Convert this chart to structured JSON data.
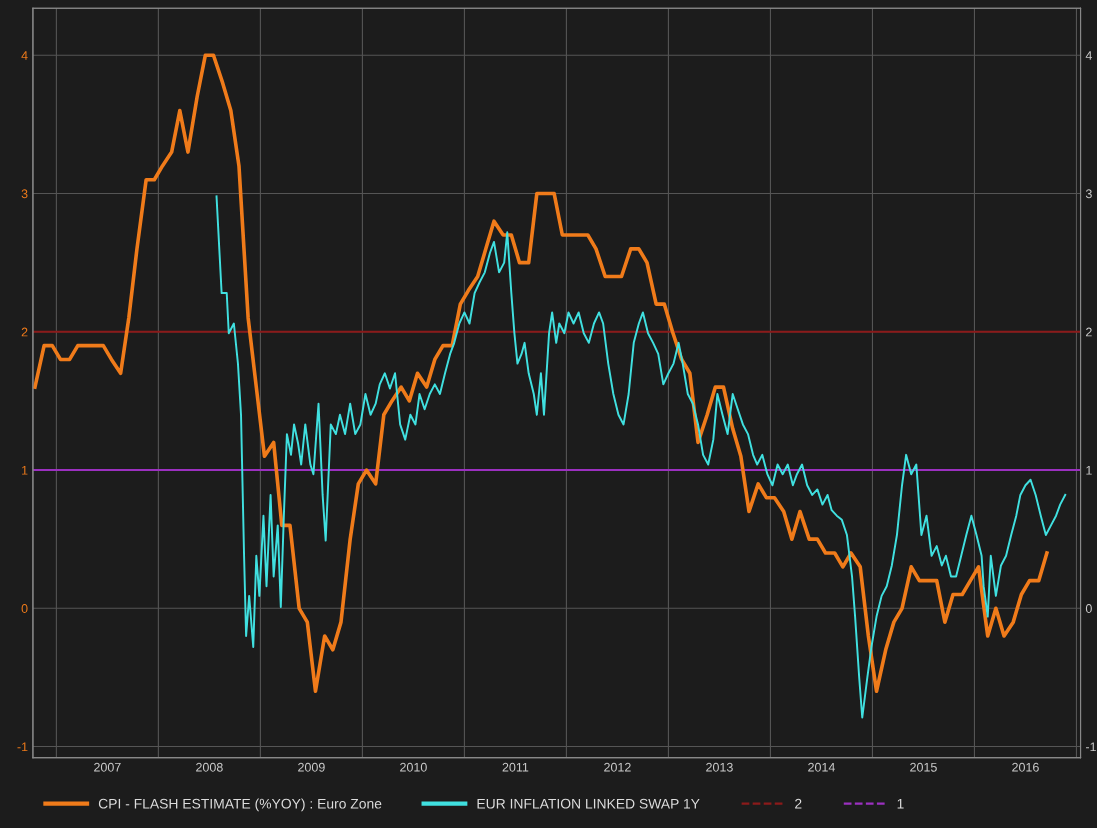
{
  "chart_data": {
    "type": "line",
    "xlim": [
      2006.77,
      2017.04
    ],
    "ylim": [
      -1.08,
      4.34
    ],
    "yticks": [
      -1,
      0,
      1,
      2,
      3,
      4
    ],
    "y2lim": [
      -1.08,
      4.34
    ],
    "y2ticks": [
      -1,
      0,
      1,
      2,
      3,
      4
    ],
    "xticks": [
      {
        "value": 2007,
        "label": null
      },
      {
        "value": 2007.5,
        "label": "2007"
      },
      {
        "value": 2008,
        "label": null
      },
      {
        "value": 2008.5,
        "label": "2008"
      },
      {
        "value": 2009,
        "label": null
      },
      {
        "value": 2009.5,
        "label": "2009"
      },
      {
        "value": 2010,
        "label": null
      },
      {
        "value": 2010.5,
        "label": "2010"
      },
      {
        "value": 2011,
        "label": null
      },
      {
        "value": 2011.5,
        "label": "2011"
      },
      {
        "value": 2012,
        "label": null
      },
      {
        "value": 2012.5,
        "label": "2012"
      },
      {
        "value": 2013,
        "label": null
      },
      {
        "value": 2013.5,
        "label": "2013"
      },
      {
        "value": 2014,
        "label": null
      },
      {
        "value": 2014.5,
        "label": "2014"
      },
      {
        "value": 2015,
        "label": null
      },
      {
        "value": 2015.5,
        "label": "2015"
      },
      {
        "value": 2016,
        "label": null
      },
      {
        "value": 2016.5,
        "label": "2016"
      },
      {
        "value": 2017,
        "label": null
      }
    ],
    "grid": true,
    "legend": "bottom",
    "marker": "none",
    "line_style": "solid",
    "series": [
      {
        "name": "CPI - FLASH ESTIMATE (%YOY) : Euro Zone",
        "color": "#f07b1a",
        "x": [
          2006.79,
          2006.88,
          2006.96,
          2007.04,
          2007.13,
          2007.21,
          2007.29,
          2007.38,
          2007.46,
          2007.54,
          2007.63,
          2007.71,
          2007.79,
          2007.88,
          2007.96,
          2008.04,
          2008.13,
          2008.21,
          2008.29,
          2008.38,
          2008.46,
          2008.54,
          2008.63,
          2008.71,
          2008.79,
          2008.88,
          2008.96,
          2009.04,
          2009.13,
          2009.21,
          2009.29,
          2009.38,
          2009.46,
          2009.54,
          2009.63,
          2009.71,
          2009.79,
          2009.88,
          2009.96,
          2010.04,
          2010.13,
          2010.21,
          2010.29,
          2010.38,
          2010.46,
          2010.54,
          2010.63,
          2010.71,
          2010.79,
          2010.88,
          2010.96,
          2011.04,
          2011.13,
          2011.21,
          2011.29,
          2011.38,
          2011.46,
          2011.54,
          2011.63,
          2011.71,
          2011.79,
          2011.88,
          2011.96,
          2012.04,
          2012.13,
          2012.21,
          2012.29,
          2012.38,
          2012.46,
          2012.54,
          2012.63,
          2012.71,
          2012.79,
          2012.88,
          2012.96,
          2013.04,
          2013.13,
          2013.21,
          2013.29,
          2013.38,
          2013.46,
          2013.54,
          2013.63,
          2013.71,
          2013.79,
          2013.88,
          2013.96,
          2014.04,
          2014.13,
          2014.21,
          2014.29,
          2014.38,
          2014.46,
          2014.54,
          2014.63,
          2014.71,
          2014.79,
          2014.88,
          2014.96,
          2015.04,
          2015.13,
          2015.21,
          2015.29,
          2015.38,
          2015.46,
          2015.54,
          2015.63,
          2015.71,
          2015.79,
          2015.88,
          2015.96,
          2016.04,
          2016.13,
          2016.21,
          2016.29,
          2016.38,
          2016.46,
          2016.54,
          2016.63,
          2016.71
        ],
        "values": [
          1.6,
          1.9,
          1.9,
          1.8,
          1.8,
          1.9,
          1.9,
          1.9,
          1.9,
          1.8,
          1.7,
          2.1,
          2.6,
          3.1,
          3.1,
          3.2,
          3.3,
          3.6,
          3.3,
          3.7,
          4.0,
          4.0,
          3.8,
          3.6,
          3.2,
          2.1,
          1.6,
          1.1,
          1.2,
          0.6,
          0.6,
          0.0,
          -0.1,
          -0.6,
          -0.2,
          -0.3,
          -0.1,
          0.5,
          0.9,
          1.0,
          0.9,
          1.4,
          1.5,
          1.6,
          1.5,
          1.7,
          1.6,
          1.8,
          1.9,
          1.9,
          2.2,
          2.3,
          2.4,
          2.6,
          2.8,
          2.7,
          2.7,
          2.5,
          2.5,
          3.0,
          3.0,
          3.0,
          2.7,
          2.7,
          2.7,
          2.7,
          2.6,
          2.4,
          2.4,
          2.4,
          2.6,
          2.6,
          2.5,
          2.2,
          2.2,
          2.0,
          1.8,
          1.7,
          1.2,
          1.4,
          1.6,
          1.6,
          1.3,
          1.1,
          0.7,
          0.9,
          0.8,
          0.8,
          0.7,
          0.5,
          0.7,
          0.5,
          0.5,
          0.4,
          0.4,
          0.3,
          0.4,
          0.3,
          -0.2,
          -0.6,
          -0.3,
          -0.1,
          0.0,
          0.3,
          0.2,
          0.2,
          0.2,
          -0.1,
          0.1,
          0.1,
          0.2,
          0.3,
          -0.2,
          0.0,
          -0.2,
          -0.1,
          0.1,
          0.2,
          0.2,
          0.4
        ]
      },
      {
        "name": "EUR INFLATION LINKED SWAP 1Y",
        "color": "#40e0e0",
        "x": [
          2008.57,
          2008.62,
          2008.67,
          2008.69,
          2008.74,
          2008.78,
          2008.81,
          2008.84,
          2008.86,
          2008.89,
          2008.93,
          2008.96,
          2008.99,
          2009.03,
          2009.06,
          2009.1,
          2009.13,
          2009.17,
          2009.2,
          2009.23,
          2009.26,
          2009.3,
          2009.33,
          2009.37,
          2009.4,
          2009.44,
          2009.49,
          2009.52,
          2009.57,
          2009.61,
          2009.64,
          2009.69,
          2009.74,
          2009.78,
          2009.83,
          2009.88,
          2009.93,
          2009.98,
          2010.03,
          2010.08,
          2010.13,
          2010.17,
          2010.22,
          2010.27,
          2010.32,
          2010.37,
          2010.42,
          2010.47,
          2010.52,
          2010.56,
          2010.61,
          2010.66,
          2010.71,
          2010.76,
          2010.81,
          2010.86,
          2010.9,
          2010.95,
          2011.0,
          2011.05,
          2011.1,
          2011.15,
          2011.2,
          2011.25,
          2011.29,
          2011.34,
          2011.39,
          2011.42,
          2011.46,
          2011.49,
          2011.52,
          2011.56,
          2011.59,
          2011.63,
          2011.68,
          2011.71,
          2011.75,
          2011.78,
          2011.83,
          2011.86,
          2011.9,
          2011.93,
          2011.98,
          2012.02,
          2012.07,
          2012.12,
          2012.17,
          2012.22,
          2012.27,
          2012.32,
          2012.36,
          2012.41,
          2012.46,
          2012.51,
          2012.56,
          2012.61,
          2012.66,
          2012.71,
          2012.75,
          2012.8,
          2012.85,
          2012.9,
          2012.95,
          2013.0,
          2013.05,
          2013.1,
          2013.14,
          2013.19,
          2013.24,
          2013.29,
          2013.34,
          2013.39,
          2013.44,
          2013.48,
          2013.53,
          2013.58,
          2013.63,
          2013.68,
          2013.73,
          2013.78,
          2013.83,
          2013.87,
          2013.92,
          2013.97,
          2014.02,
          2014.07,
          2014.12,
          2014.17,
          2014.22,
          2014.26,
          2014.31,
          2014.36,
          2014.41,
          2014.46,
          2014.51,
          2014.56,
          2014.6,
          2014.65,
          2014.7,
          2014.75,
          2014.8,
          2014.83,
          2014.87,
          2014.9,
          2014.95,
          2014.99,
          2015.04,
          2015.09,
          2015.14,
          2015.19,
          2015.24,
          2015.29,
          2015.33,
          2015.38,
          2015.43,
          2015.48,
          2015.53,
          2015.58,
          2015.63,
          2015.68,
          2015.72,
          2015.77,
          2015.82,
          2015.87,
          2015.92,
          2015.97,
          2016.02,
          2016.07,
          2016.09,
          2016.13,
          2016.16,
          2016.21,
          2016.26,
          2016.31,
          2016.36,
          2016.41,
          2016.45,
          2016.5,
          2016.55,
          2016.6,
          2016.65,
          2016.7,
          2016.75,
          2016.8,
          2016.84,
          2016.89
        ],
        "values": [
          2.98,
          2.28,
          2.28,
          1.99,
          2.06,
          1.77,
          1.4,
          0.38,
          -0.2,
          0.09,
          -0.28,
          0.38,
          0.09,
          0.67,
          0.16,
          0.82,
          0.23,
          0.6,
          0.01,
          0.67,
          1.26,
          1.11,
          1.33,
          1.19,
          1.04,
          1.33,
          1.04,
          0.97,
          1.48,
          0.82,
          0.49,
          1.33,
          1.26,
          1.4,
          1.26,
          1.48,
          1.26,
          1.33,
          1.55,
          1.4,
          1.48,
          1.62,
          1.7,
          1.59,
          1.7,
          1.33,
          1.22,
          1.4,
          1.33,
          1.55,
          1.44,
          1.55,
          1.62,
          1.55,
          1.7,
          1.84,
          1.92,
          2.06,
          2.14,
          2.06,
          2.28,
          2.36,
          2.43,
          2.57,
          2.65,
          2.43,
          2.5,
          2.72,
          2.28,
          1.99,
          1.77,
          1.84,
          1.92,
          1.7,
          1.55,
          1.4,
          1.7,
          1.4,
          1.99,
          2.14,
          1.92,
          2.06,
          1.99,
          2.14,
          2.06,
          2.14,
          1.99,
          1.92,
          2.06,
          2.14,
          2.06,
          1.77,
          1.55,
          1.4,
          1.33,
          1.55,
          1.92,
          2.06,
          2.14,
          1.99,
          1.92,
          1.84,
          1.62,
          1.7,
          1.77,
          1.92,
          1.77,
          1.55,
          1.48,
          1.33,
          1.11,
          1.04,
          1.22,
          1.55,
          1.4,
          1.26,
          1.55,
          1.44,
          1.33,
          1.26,
          1.11,
          1.04,
          1.11,
          0.97,
          0.89,
          1.04,
          0.97,
          1.04,
          0.89,
          0.97,
          1.04,
          0.89,
          0.82,
          0.86,
          0.75,
          0.82,
          0.71,
          0.67,
          0.64,
          0.53,
          0.23,
          -0.06,
          -0.5,
          -0.79,
          -0.5,
          -0.28,
          -0.06,
          0.09,
          0.16,
          0.31,
          0.53,
          0.89,
          1.11,
          0.97,
          1.04,
          0.53,
          0.67,
          0.38,
          0.45,
          0.31,
          0.38,
          0.23,
          0.23,
          0.38,
          0.53,
          0.67,
          0.53,
          0.38,
          0.16,
          -0.06,
          0.38,
          0.09,
          0.31,
          0.38,
          0.53,
          0.67,
          0.82,
          0.89,
          0.93,
          0.82,
          0.67,
          0.53,
          0.6,
          0.67,
          0.75,
          0.82
        ]
      }
    ],
    "ref_lines": [
      {
        "axis": "y",
        "value": 2,
        "label": "2",
        "color": "#8b1a1a"
      },
      {
        "axis": "y",
        "value": 1,
        "label": "1",
        "color": "#9b30c0"
      }
    ]
  }
}
